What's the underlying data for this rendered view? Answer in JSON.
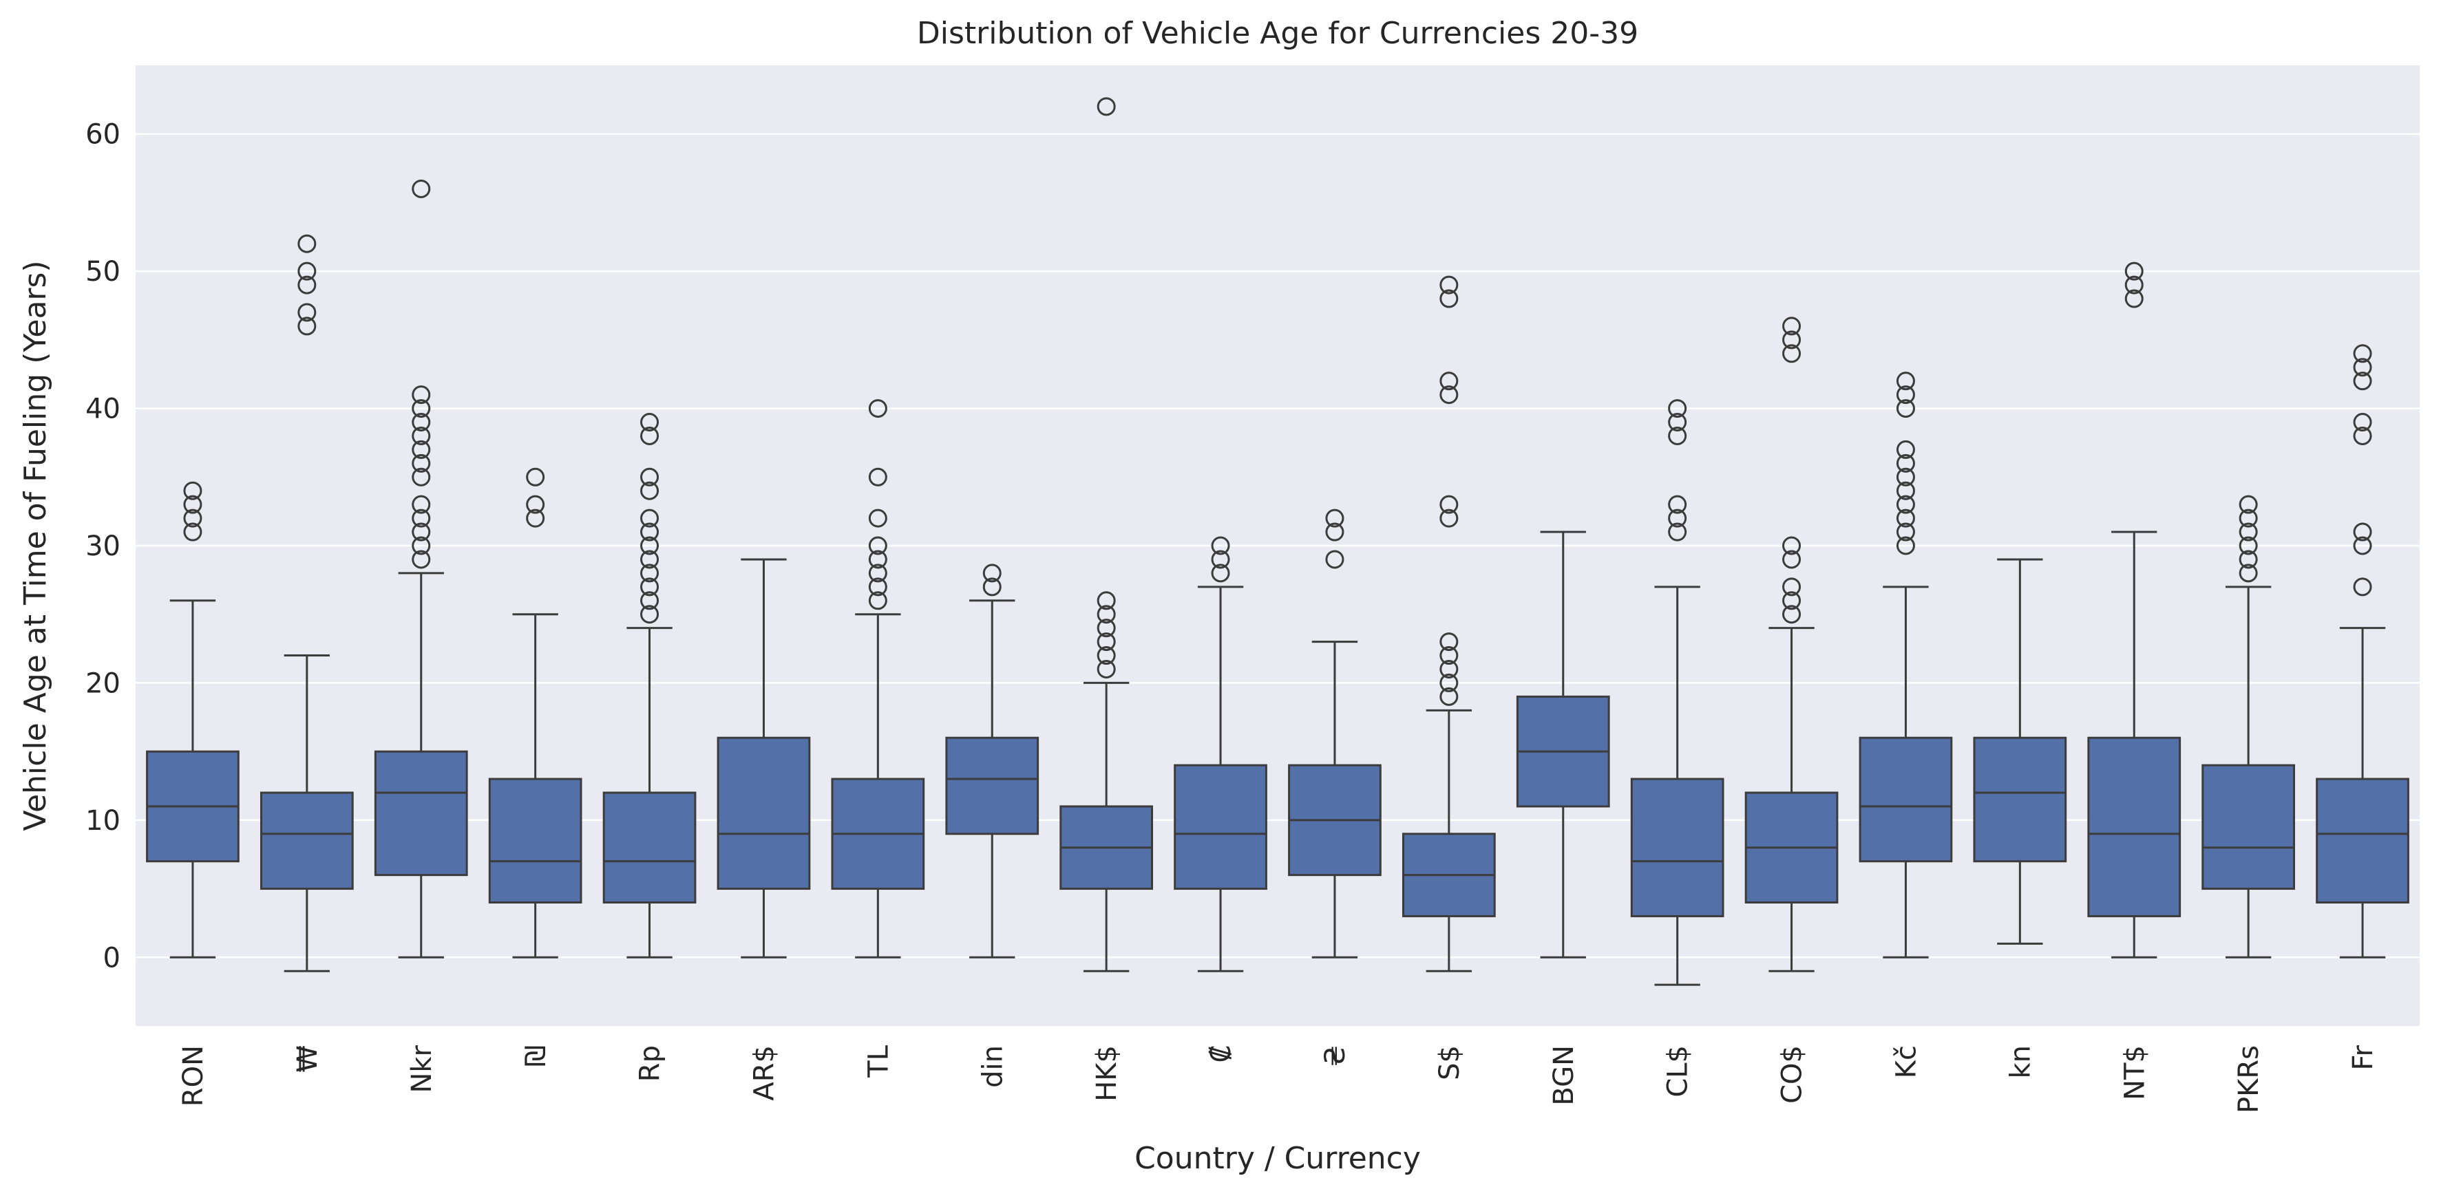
{
  "chart_data": {
    "type": "box",
    "title": "Distribution of Vehicle Age for Currencies 20-39",
    "xlabel": "Country / Currency",
    "ylabel": "Vehicle Age at Time of Fueling (Years)",
    "ylim": [
      -5,
      65
    ],
    "yticks": [
      0,
      10,
      20,
      30,
      40,
      50,
      60
    ],
    "grid": true,
    "legend": "none",
    "colors": {
      "box": "#5470a9",
      "line": "#3c3c3c",
      "background": "#eaeaf2",
      "grid": "#ffffff"
    },
    "categories": [
      "RON",
      "₩",
      "Nkr",
      "₪",
      "Rp",
      "AR$",
      "TL",
      "din",
      "HK$",
      "₡",
      "₴",
      "S$",
      "BGN",
      "CL$",
      "CO$",
      "Kč",
      "kn",
      "NT$",
      "PKRs",
      "Fr"
    ],
    "boxes": [
      {
        "label": "RON",
        "whislo": 0,
        "q1": 7,
        "med": 11,
        "q3": 15,
        "whishi": 26,
        "fliers": [
          31,
          32,
          33,
          34
        ]
      },
      {
        "label": "₩",
        "whislo": -1,
        "q1": 5,
        "med": 9,
        "q3": 12,
        "whishi": 22,
        "fliers": [
          46,
          47,
          49,
          50,
          52
        ]
      },
      {
        "label": "Nkr",
        "whislo": 0,
        "q1": 6,
        "med": 12,
        "q3": 15,
        "whishi": 28,
        "fliers": [
          29,
          30,
          31,
          32,
          33,
          35,
          36,
          37,
          38,
          39,
          40,
          41,
          56
        ]
      },
      {
        "label": "₪",
        "whislo": 0,
        "q1": 4,
        "med": 7,
        "q3": 13,
        "whishi": 25,
        "fliers": [
          32,
          33,
          35
        ]
      },
      {
        "label": "Rp",
        "whislo": 0,
        "q1": 4,
        "med": 7,
        "q3": 12,
        "whishi": 24,
        "fliers": [
          25,
          26,
          27,
          28,
          29,
          30,
          31,
          32,
          34,
          35,
          38,
          39
        ]
      },
      {
        "label": "AR$",
        "whislo": 0,
        "q1": 5,
        "med": 9,
        "q3": 16,
        "whishi": 29,
        "fliers": []
      },
      {
        "label": "TL",
        "whislo": 0,
        "q1": 5,
        "med": 9,
        "q3": 13,
        "whishi": 25,
        "fliers": [
          26,
          27,
          28,
          29,
          30,
          32,
          35,
          40
        ]
      },
      {
        "label": "din",
        "whislo": 0,
        "q1": 9,
        "med": 13,
        "q3": 16,
        "whishi": 26,
        "fliers": [
          27,
          28
        ]
      },
      {
        "label": "HK$",
        "whislo": -1,
        "q1": 5,
        "med": 8,
        "q3": 11,
        "whishi": 20,
        "fliers": [
          21,
          22,
          23,
          24,
          25,
          26,
          62
        ]
      },
      {
        "label": "₡",
        "whislo": -1,
        "q1": 5,
        "med": 9,
        "q3": 14,
        "whishi": 27,
        "fliers": [
          28,
          29,
          30
        ]
      },
      {
        "label": "₴",
        "whislo": 0,
        "q1": 6,
        "med": 10,
        "q3": 14,
        "whishi": 23,
        "fliers": [
          29,
          31,
          32
        ]
      },
      {
        "label": "S$",
        "whislo": -1,
        "q1": 3,
        "med": 6,
        "q3": 9,
        "whishi": 18,
        "fliers": [
          19,
          20,
          21,
          22,
          23,
          32,
          33,
          41,
          42,
          48,
          49
        ]
      },
      {
        "label": "BGN",
        "whislo": 0,
        "q1": 11,
        "med": 15,
        "q3": 19,
        "whishi": 31,
        "fliers": []
      },
      {
        "label": "CL$",
        "whislo": -2,
        "q1": 3,
        "med": 7,
        "q3": 13,
        "whishi": 27,
        "fliers": [
          31,
          32,
          33,
          38,
          39,
          40
        ]
      },
      {
        "label": "CO$",
        "whislo": -1,
        "q1": 4,
        "med": 8,
        "q3": 12,
        "whishi": 24,
        "fliers": [
          25,
          26,
          27,
          29,
          30,
          44,
          45,
          46
        ]
      },
      {
        "label": "Kč",
        "whislo": 0,
        "q1": 7,
        "med": 11,
        "q3": 16,
        "whishi": 27,
        "fliers": [
          30,
          31,
          32,
          33,
          34,
          35,
          36,
          37,
          40,
          41,
          42
        ]
      },
      {
        "label": "kn",
        "whislo": 1,
        "q1": 7,
        "med": 12,
        "q3": 16,
        "whishi": 29,
        "fliers": []
      },
      {
        "label": "NT$",
        "whislo": 0,
        "q1": 3,
        "med": 9,
        "q3": 16,
        "whishi": 31,
        "fliers": [
          48,
          49,
          50
        ]
      },
      {
        "label": "PKRs",
        "whislo": 0,
        "q1": 5,
        "med": 8,
        "q3": 14,
        "whishi": 27,
        "fliers": [
          28,
          29,
          30,
          31,
          32,
          33
        ]
      },
      {
        "label": "Fr",
        "whislo": 0,
        "q1": 4,
        "med": 9,
        "q3": 13,
        "whishi": 24,
        "fliers": [
          27,
          30,
          31,
          38,
          39,
          42,
          43,
          44
        ]
      }
    ]
  }
}
